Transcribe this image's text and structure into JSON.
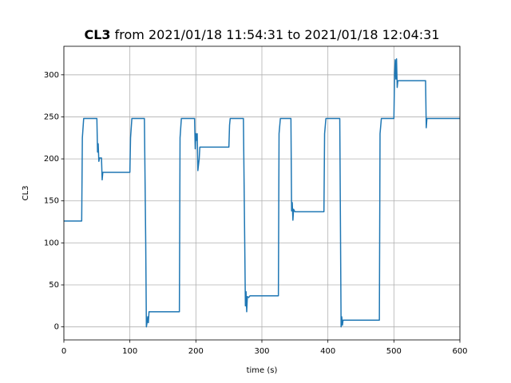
{
  "chart_data": {
    "type": "line",
    "title": {
      "bold": "CL3",
      "text": "from 2021/01/18 11:54:31 to 2021/01/18 12:04:31"
    },
    "xlabel": "time (s)",
    "ylabel": "CL3",
    "x": [
      0,
      27,
      28,
      30,
      50,
      51,
      52,
      53,
      54,
      57,
      58,
      59,
      100,
      101,
      103,
      122,
      124,
      125,
      126,
      127,
      128,
      129,
      175,
      176,
      178,
      198,
      199,
      200,
      201,
      202,
      203,
      205,
      206,
      250,
      251,
      252,
      272,
      274,
      275,
      276,
      277,
      278,
      280,
      282,
      325,
      326,
      328,
      344,
      345,
      346,
      347,
      348,
      350,
      394,
      395,
      397,
      418,
      420,
      421,
      422,
      423,
      425,
      478,
      479,
      481,
      500,
      501,
      502,
      503,
      504,
      505,
      506,
      548,
      549,
      550,
      600
    ],
    "series": [
      {
        "name": "CL3",
        "color": "#1f77b4",
        "values": [
          126,
          126,
          225,
          248,
          248,
          208,
          218,
          197,
          201,
          201,
          175,
          184,
          184,
          225,
          248,
          248,
          100,
          0,
          5,
          12,
          5,
          18,
          18,
          225,
          248,
          248,
          212,
          230,
          222,
          230,
          186,
          200,
          214,
          214,
          240,
          248,
          248,
          100,
          25,
          42,
          18,
          36,
          35,
          37,
          37,
          230,
          248,
          248,
          138,
          148,
          127,
          140,
          137,
          137,
          230,
          248,
          248,
          0,
          12,
          2,
          8,
          8,
          8,
          230,
          248,
          248,
          300,
          318,
          295,
          319,
          285,
          293,
          293,
          237,
          248,
          248
        ]
      }
    ],
    "xlim": [
      0,
      600
    ],
    "ylim": [
      -15.5,
      334
    ],
    "xticks": [
      0,
      100,
      200,
      300,
      400,
      500,
      600
    ],
    "yticks": [
      0,
      50,
      100,
      150,
      200,
      250,
      300
    ],
    "grid": true
  }
}
